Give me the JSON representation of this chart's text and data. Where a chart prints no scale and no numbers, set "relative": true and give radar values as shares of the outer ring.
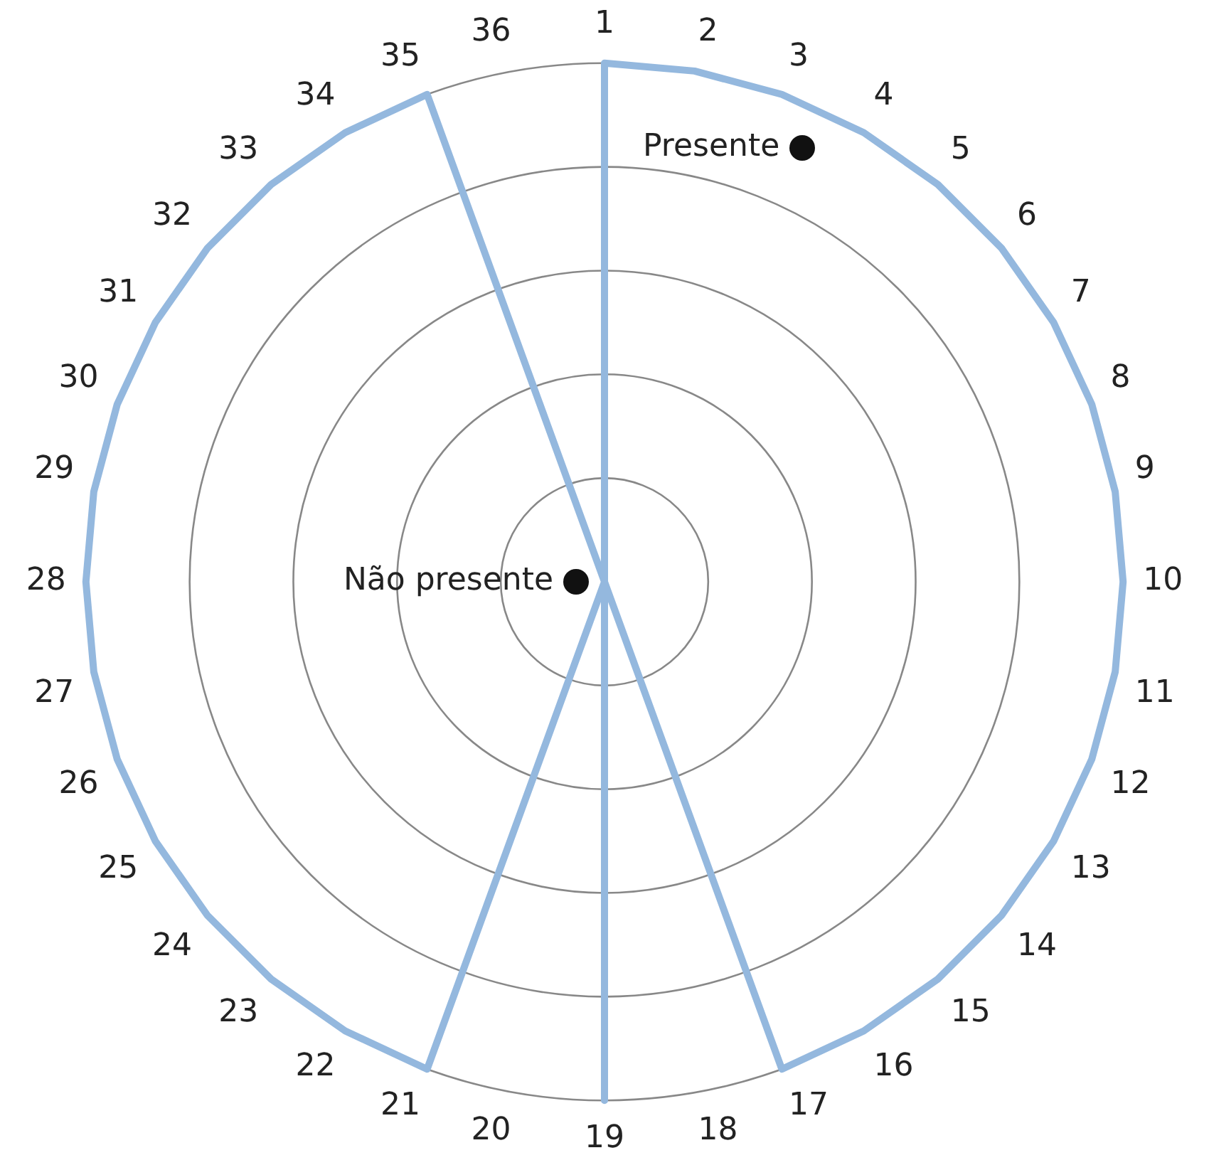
{
  "chart_data": {
    "type": "radar",
    "relative": true,
    "categories": [
      "1",
      "2",
      "3",
      "4",
      "5",
      "6",
      "7",
      "8",
      "9",
      "10",
      "11",
      "12",
      "13",
      "14",
      "15",
      "16",
      "17",
      "18",
      "19",
      "20",
      "21",
      "22",
      "23",
      "24",
      "25",
      "26",
      "27",
      "28",
      "29",
      "30",
      "31",
      "32",
      "33",
      "34",
      "35",
      "36"
    ],
    "series": [
      {
        "color": "#94b8de",
        "values": [
          1,
          1,
          1,
          1,
          1,
          1,
          1,
          1,
          1,
          1,
          1,
          1,
          1,
          1,
          1,
          1,
          1,
          0,
          1,
          0,
          1,
          1,
          1,
          1,
          1,
          1,
          1,
          1,
          1,
          1,
          1,
          1,
          1,
          1,
          1,
          0
        ]
      }
    ],
    "annotations": [
      "Presente",
      "Não presente"
    ],
    "grid": true,
    "legend": false,
    "marker": "none"
  }
}
